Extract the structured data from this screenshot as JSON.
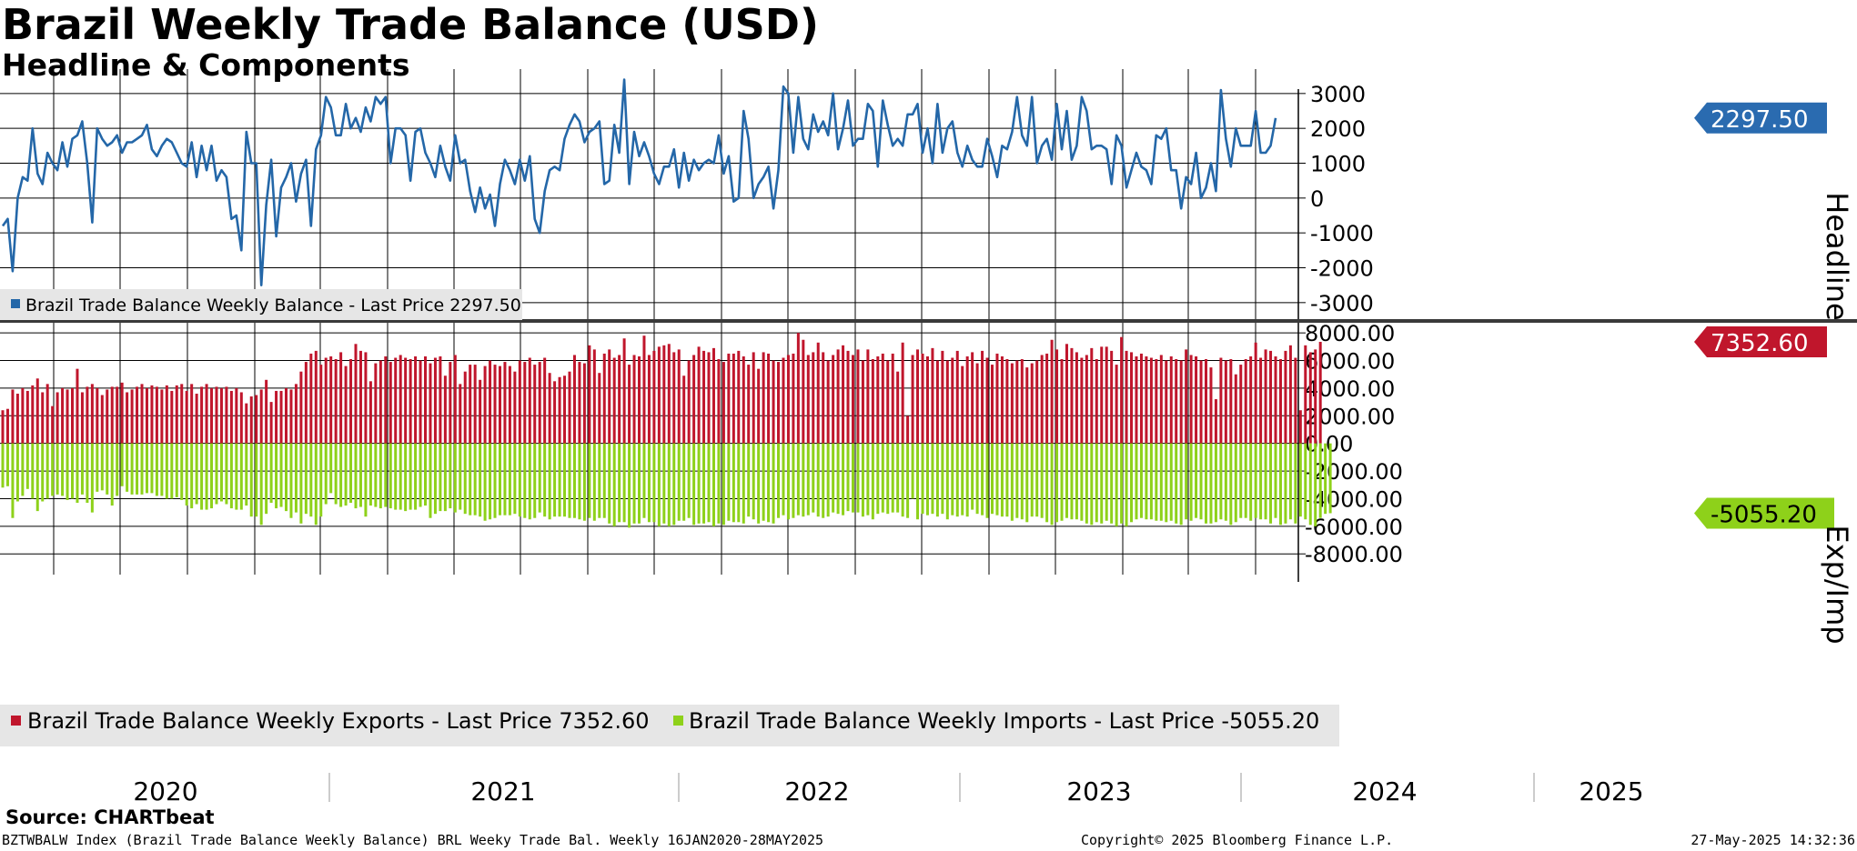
{
  "title": "Brazil Weekly Trade Balance (USD)",
  "subtitle": "Headline & Components",
  "source": "Source: CHARTbeat",
  "footer": {
    "left": "BZTWBALW Index (Brazil Trade Balance Weekly Balance) BRL Weeky Trade Bal. Weekly 16JAN2020-28MAY2025",
    "center": "Copyright© 2025 Bloomberg Finance L.P.",
    "right": "27-May-2025 14:32:36"
  },
  "colors": {
    "balance": "#2467a8",
    "exports": "#c0162c",
    "imports": "#8ed11a",
    "grid": "#000000",
    "legend_bg": "#e6e6e6"
  },
  "chart_data": [
    {
      "type": "line",
      "name": "Headline",
      "ylabel": "Headline",
      "ylim": [
        -3500,
        3700
      ],
      "yticks": [
        3000,
        2000,
        1000,
        0,
        -1000,
        -2000,
        -3000
      ],
      "ytick_labels": [
        "3000",
        "2000",
        "1000",
        "0",
        "-1000",
        "-2000",
        "-3000"
      ],
      "last_value_label": "2297.50",
      "legend": "Brazil Trade Balance Weekly Balance - Last Price 2297.50",
      "series": [
        {
          "name": "Brazil Trade Balance Weekly Balance",
          "values": [
            -800,
            -600,
            -2100,
            0,
            600,
            500,
            2000,
            700,
            400,
            1300,
            1000,
            800,
            1600,
            900,
            1700,
            1800,
            2200,
            1000,
            -700,
            2000,
            1700,
            1500,
            1600,
            1800,
            1300,
            1600,
            1600,
            1700,
            1800,
            2100,
            1400,
            1200,
            1500,
            1700,
            1600,
            1300,
            1000,
            900,
            1600,
            600,
            1500,
            800,
            1500,
            500,
            800,
            600,
            -600,
            -500,
            -1500,
            1900,
            1000,
            1000,
            -2500,
            -200,
            1100,
            -1100,
            300,
            600,
            1000,
            -100,
            700,
            1100,
            -800,
            1400,
            1800,
            2900,
            2600,
            1800,
            1800,
            2700,
            2000,
            2300,
            1900,
            2600,
            2200,
            2900,
            2700,
            2900,
            1000,
            2000,
            2000,
            1800,
            500,
            1900,
            2000,
            1300,
            1000,
            600,
            1500,
            900,
            500,
            1800,
            1000,
            1100,
            200,
            -400,
            300,
            -300,
            100,
            -800,
            400,
            1100,
            800,
            400,
            1100,
            500,
            1200,
            -600,
            -1000,
            200,
            800,
            900,
            800,
            1700,
            2100,
            2400,
            2200,
            1600,
            1900,
            2000,
            2200,
            400,
            500,
            2100,
            1300,
            3400,
            400,
            1900,
            1200,
            1600,
            1200,
            700,
            400,
            900,
            900,
            1400,
            300,
            1300,
            500,
            1100,
            800,
            1000,
            1100,
            1000,
            1800,
            700,
            1200,
            -100,
            0,
            2500,
            1700,
            0,
            400,
            600,
            900,
            -300,
            800,
            3200,
            3000,
            1300,
            2900,
            1700,
            1400,
            2400,
            1900,
            2200,
            1800,
            3000,
            1400,
            2000,
            2800,
            1500,
            1700,
            1700,
            2700,
            2500,
            900,
            2800,
            2100,
            1500,
            1700,
            1500,
            2400,
            2400,
            2700,
            1300,
            2000,
            1000,
            2700,
            1300,
            2000,
            2200,
            1300,
            900,
            1500,
            1100,
            900,
            900,
            1700,
            1200,
            600,
            1500,
            1400,
            1900,
            2900,
            1800,
            1500,
            2900,
            1000,
            1500,
            1700,
            1100,
            2700,
            1400,
            2500,
            1100,
            1500,
            2900,
            2500,
            1400,
            1500,
            1500,
            1400,
            400,
            1800,
            1500,
            300,
            800,
            1300,
            900,
            800,
            400,
            1800,
            1700,
            2000,
            800,
            800,
            -300,
            600,
            400,
            1300,
            0,
            300,
            1000,
            200,
            3100,
            1700,
            900,
            2000,
            1500,
            1500,
            1500,
            2500,
            1300,
            1300,
            1500,
            2297.5
          ]
        }
      ]
    },
    {
      "type": "bar",
      "name": "Exp/Imp",
      "ylabel": "Exp/Imp",
      "ylim": [
        -9500,
        8800
      ],
      "yticks": [
        8000,
        6000,
        4000,
        2000,
        0,
        -2000,
        -4000,
        -6000,
        -8000
      ],
      "ytick_labels": [
        "8000.00",
        "6000.00",
        "4000.00",
        "2000.00",
        "0.00",
        "-2000.00",
        "-4000.00",
        "-6000.00",
        "-8000.00"
      ],
      "last_exports_label": "7352.60",
      "last_imports_label": "-5055.20",
      "legend_exports": "Brazil Trade Balance Weekly Exports - Last Price 7352.60",
      "legend_imports": "Brazil Trade Balance Weekly Imports - Last Price -5055.20",
      "x_labels": [
        "2020",
        "2021",
        "2022",
        "2023",
        "2024",
        "2025"
      ],
      "series": [
        {
          "name": "Brazil Trade Balance Weekly Exports",
          "values": [
            2400,
            2500,
            3900,
            3600,
            4000,
            3800,
            4200,
            4700,
            3700,
            4300,
            2700,
            3700,
            4000,
            3900,
            4000,
            5400,
            3700,
            4100,
            4300,
            4000,
            3500,
            3900,
            4100,
            4100,
            4400,
            3700,
            3900,
            4100,
            4300,
            4000,
            4200,
            4100,
            3900,
            4200,
            3800,
            4200,
            4300,
            3800,
            4300,
            3600,
            4100,
            4300,
            4000,
            4100,
            4000,
            4100,
            3800,
            4000,
            3700,
            2900,
            3400,
            3500,
            3900,
            4600,
            3000,
            3800,
            3800,
            4000,
            3900,
            4300,
            5200,
            5900,
            6500,
            6700,
            5700,
            6200,
            6300,
            6100,
            6600,
            5600,
            6100,
            7200,
            6700,
            6600,
            4500,
            5800,
            6000,
            6300,
            5900,
            6200,
            6400,
            6200,
            6100,
            6300,
            6000,
            6300,
            5800,
            6200,
            6300,
            4900,
            5900,
            6400,
            4300,
            5200,
            5700,
            5700,
            4600,
            5600,
            6000,
            5700,
            5600,
            5900,
            5600,
            5200,
            6000,
            5900,
            6200,
            5700,
            5900,
            6200,
            5100,
            4500,
            4800,
            4900,
            5200,
            6400,
            5900,
            5800,
            7100,
            6800,
            5100,
            6500,
            6800,
            6200,
            6400,
            7600,
            5700,
            6400,
            6300,
            7800,
            6400,
            6700,
            7000,
            7100,
            7200,
            6600,
            6800,
            4900,
            6000,
            6400,
            7000,
            6700,
            6600,
            6900,
            6100,
            5900,
            6500,
            6500,
            6700,
            6300,
            5700,
            6600,
            5400,
            6600,
            6500,
            6000,
            5900,
            6200,
            6400,
            6500,
            8000,
            7500,
            6400,
            6600,
            7300,
            6600,
            6000,
            6400,
            6800,
            7100,
            6700,
            6400,
            6800,
            6000,
            6800,
            6100,
            6300,
            6500,
            6000,
            6500,
            5200,
            7300,
            2000,
            6400,
            6800,
            6500,
            6300,
            6900,
            6000,
            6700,
            6000,
            6200,
            6700,
            5600,
            6300,
            6600,
            5800,
            6700,
            6200,
            5700,
            6500,
            6300,
            6100,
            5800,
            6000,
            6100,
            5500,
            5800,
            6000,
            6400,
            6500,
            7500,
            6800,
            6100,
            7200,
            6900,
            6600,
            6200,
            6400,
            6900,
            6100,
            7000,
            7000,
            6700,
            5700,
            7700,
            6700,
            6600,
            6300,
            6500,
            6300,
            6200,
            6100,
            6400,
            6000,
            6300,
            6100,
            6000,
            6800,
            6400,
            6300,
            6000,
            6100,
            5500,
            3200,
            6200,
            6000,
            6100,
            5000,
            5700,
            6100,
            6300,
            7300,
            6200,
            6800,
            6700,
            6300,
            6100,
            6700,
            7100,
            6200,
            2400,
            7100,
            6600,
            6800,
            7352.6
          ]
        },
        {
          "name": "Brazil Trade Balance Weekly Imports",
          "values": [
            -3200,
            -3100,
            -5400,
            -4200,
            -3800,
            -3300,
            -4000,
            -4900,
            -4200,
            -4000,
            -3800,
            -3700,
            -3800,
            -4100,
            -4000,
            -4300,
            -3700,
            -4300,
            -5000,
            -3500,
            -3400,
            -3700,
            -4500,
            -3800,
            -3100,
            -3500,
            -3700,
            -3700,
            -3700,
            -3600,
            -3600,
            -3800,
            -3800,
            -4000,
            -4000,
            -3900,
            -4100,
            -4500,
            -4700,
            -4400,
            -4800,
            -4800,
            -4700,
            -4400,
            -4200,
            -4400,
            -4700,
            -4800,
            -4800,
            -4500,
            -5300,
            -5300,
            -5900,
            -5100,
            -4300,
            -4700,
            -4600,
            -4900,
            -5400,
            -5000,
            -5800,
            -5100,
            -5300,
            -5900,
            -5300,
            -4400,
            -3600,
            -4400,
            -4600,
            -4500,
            -4300,
            -4700,
            -4600,
            -5300,
            -4500,
            -4600,
            -4700,
            -4600,
            -4700,
            -4800,
            -4800,
            -4900,
            -4800,
            -4800,
            -4600,
            -4500,
            -5400,
            -5100,
            -4900,
            -4900,
            -4700,
            -5000,
            -4800,
            -5100,
            -5200,
            -5200,
            -5300,
            -5600,
            -5500,
            -5400,
            -5200,
            -5200,
            -5200,
            -5100,
            -5300,
            -5400,
            -5500,
            -5400,
            -5000,
            -5300,
            -5500,
            -5300,
            -5300,
            -5300,
            -5400,
            -5400,
            -5500,
            -5600,
            -5400,
            -5600,
            -5400,
            -5400,
            -5800,
            -6000,
            -5700,
            -5700,
            -6100,
            -5800,
            -5800,
            -5400,
            -5700,
            -5700,
            -6000,
            -5800,
            -6000,
            -5900,
            -5600,
            -5600,
            -5400,
            -5900,
            -5800,
            -5800,
            -5700,
            -6000,
            -5800,
            -5900,
            -5600,
            -5700,
            -5700,
            -5800,
            -5300,
            -5500,
            -5800,
            -5600,
            -5700,
            -5800,
            -5400,
            -5200,
            -5500,
            -5400,
            -5200,
            -5300,
            -5200,
            -5000,
            -5300,
            -5400,
            -5300,
            -5000,
            -5100,
            -5200,
            -4900,
            -5000,
            -5000,
            -5300,
            -5200,
            -5500,
            -5100,
            -5000,
            -5100,
            -5000,
            -5000,
            -5300,
            -5400,
            -4000,
            -5500,
            -5100,
            -5200,
            -5100,
            -5300,
            -5100,
            -5500,
            -5200,
            -5300,
            -5200,
            -5300,
            -4800,
            -5100,
            -5200,
            -5400,
            -5100,
            -5200,
            -5300,
            -5300,
            -5600,
            -5400,
            -5500,
            -5700,
            -5300,
            -5300,
            -5400,
            -5700,
            -5900,
            -5700,
            -5600,
            -5400,
            -5500,
            -5500,
            -5600,
            -5800,
            -5900,
            -5700,
            -5800,
            -5600,
            -5800,
            -6000,
            -5800,
            -6000,
            -5700,
            -5500,
            -5400,
            -5500,
            -5500,
            -5600,
            -5600,
            -5700,
            -5600,
            -5800,
            -5900,
            -5500,
            -5600,
            -5400,
            -5500,
            -5800,
            -5800,
            -5700,
            -5500,
            -5600,
            -5900,
            -5700,
            -5400,
            -5400,
            -5600,
            -5400,
            -5500,
            -5500,
            -5800,
            -5400,
            -5900,
            -5800,
            -5500,
            -5800,
            -5300,
            -5500,
            -5900,
            -6000,
            -5400,
            -5100,
            -5055.2
          ]
        }
      ]
    }
  ]
}
